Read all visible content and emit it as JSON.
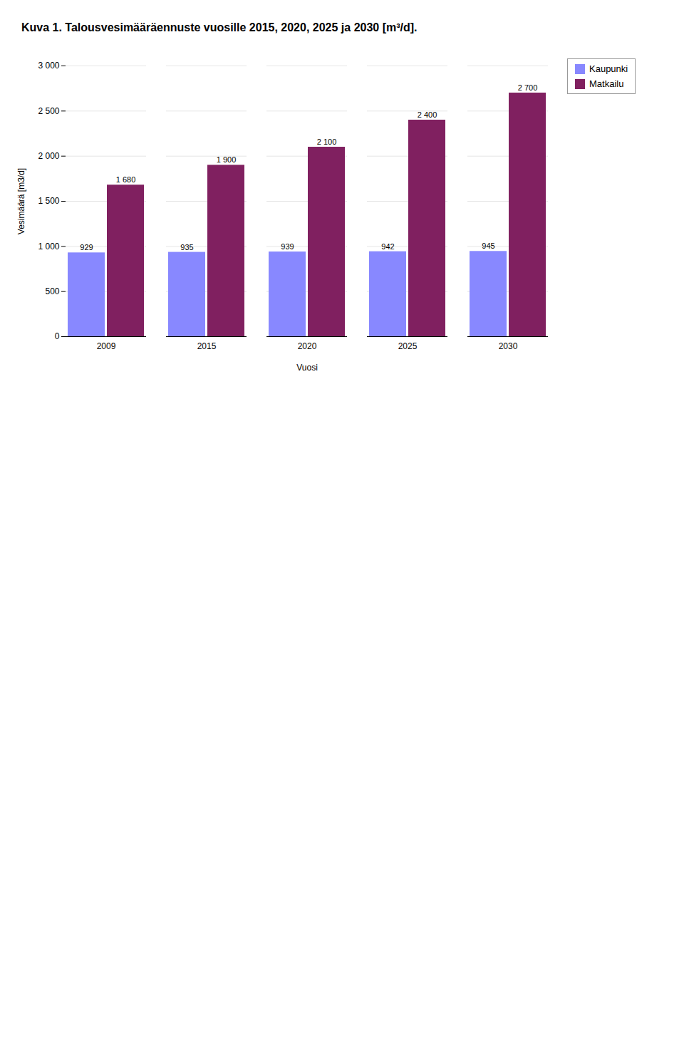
{
  "chart_data": {
    "type": "bar",
    "title": "Kuva 1. Talousvesimääräennuste vuosille 2015, 2020, 2025 ja 2030 [m³/d].",
    "categories": [
      "2009",
      "2015",
      "2020",
      "2025",
      "2030"
    ],
    "series": [
      {
        "name": "Kaupunki",
        "color": "#8888FF",
        "values": [
          929,
          935,
          939,
          942,
          945
        ]
      },
      {
        "name": "Matkailu",
        "color": "#802060",
        "values": [
          1680,
          1900,
          2100,
          2400,
          2700
        ],
        "value_labels": [
          "1 680",
          "1 900",
          "2 100",
          "2 400",
          "2 700"
        ]
      }
    ],
    "xlabel": "Vuosi",
    "ylabel": "Vesimäärä [m3/d]",
    "ylim": [
      0,
      3000
    ],
    "yticks": [
      0,
      500,
      {
        "value": 1000,
        "label": "1 000"
      },
      {
        "value": 1500,
        "label": "1 500"
      },
      {
        "value": 2000,
        "label": "2 000"
      },
      {
        "value": 2500,
        "label": "2 500"
      },
      {
        "value": 3000,
        "label": "3 000"
      }
    ],
    "grid": true,
    "legend": "right",
    "stacked": false,
    "data_labels": true
  }
}
